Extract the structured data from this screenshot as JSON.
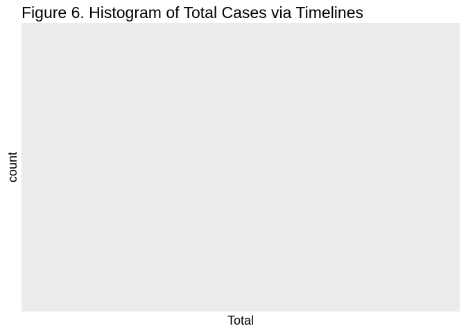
{
  "chart_data": {
    "type": "bar",
    "title": "Figure 6. Histogram of Total Cases via Timelines",
    "xlabel": "Total",
    "ylabel": "count",
    "categories": [],
    "values": [],
    "grid": false,
    "legend": "none",
    "panel_color": "#EBEBEB"
  }
}
